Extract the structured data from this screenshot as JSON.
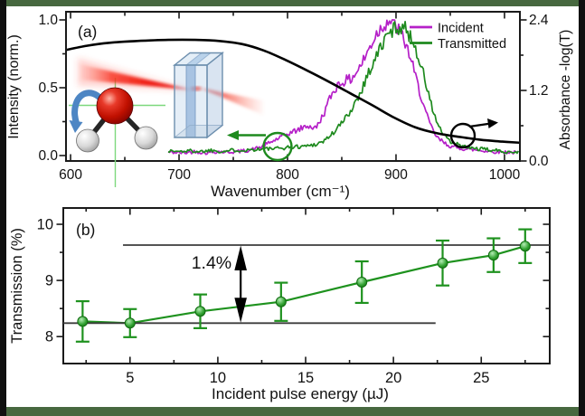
{
  "frame": {
    "border_color": "#101010",
    "accent_strip_color": "#47683f"
  },
  "panel_a": {
    "label": "(a)",
    "x_axis_label": "Wavenumber (cm⁻¹)",
    "y_left_label": "Intensity (norm.)",
    "y_right_label": "Absorbance -log(T)",
    "legend": [
      {
        "label": "Incident",
        "color": "#b520c8"
      },
      {
        "label": "Transmitted",
        "color": "#1e8a1e"
      }
    ]
  },
  "panel_b": {
    "label": "(b)",
    "x_axis_label": "Incident pulse energy (µJ)",
    "y_axis_label": "Transmission (%)",
    "annotation_label": "1.4%"
  },
  "chart_data": [
    {
      "type": "line",
      "title": "Spectra of incident and transmitted pulses with absorbance",
      "xlabel": "Wavenumber (cm⁻¹)",
      "ylabel_left": "Intensity (norm.)",
      "ylabel_right": "Absorbance -log(T)",
      "xlim": [
        595.8,
        1014.2
      ],
      "ylim_left": [
        -0.04,
        1.06
      ],
      "ylim_right": [
        0.0,
        2.54
      ],
      "x_major_ticks": [
        600,
        700,
        800,
        900,
        1000
      ],
      "x_minor_ticks": [
        650,
        750,
        850,
        950
      ],
      "y_left_major_ticks": [
        0.0,
        0.5,
        1.0
      ],
      "y_left_minor_ticks": [
        0.25,
        0.75
      ],
      "y_right_major_ticks": [
        0.0,
        1.2,
        2.4
      ],
      "y_right_minor_ticks": [
        0.6,
        1.8
      ],
      "legend_position": "top-right",
      "series": [
        {
          "name": "Incident",
          "color": "#b520c8",
          "axis": "left",
          "noisy": true,
          "points": [
            [
              690,
              0.025
            ],
            [
              705,
              0.02
            ],
            [
              715,
              0.03
            ],
            [
              725,
              0.02
            ],
            [
              735,
              0.03
            ],
            [
              745,
              0.025
            ],
            [
              755,
              0.03
            ],
            [
              765,
              0.04
            ],
            [
              775,
              0.06
            ],
            [
              785,
              0.1
            ],
            [
              795,
              0.14
            ],
            [
              803,
              0.17
            ],
            [
              810,
              0.19
            ],
            [
              818,
              0.22
            ],
            [
              826,
              0.2
            ],
            [
              833,
              0.3
            ],
            [
              840,
              0.44
            ],
            [
              846,
              0.52
            ],
            [
              852,
              0.55
            ],
            [
              858,
              0.56
            ],
            [
              864,
              0.62
            ],
            [
              870,
              0.7
            ],
            [
              876,
              0.8
            ],
            [
              882,
              0.9
            ],
            [
              888,
              0.96
            ],
            [
              893,
              1.0
            ],
            [
              898,
              0.97
            ],
            [
              903,
              0.92
            ],
            [
              908,
              0.84
            ],
            [
              913,
              0.73
            ],
            [
              918,
              0.58
            ],
            [
              923,
              0.44
            ],
            [
              928,
              0.3
            ],
            [
              933,
              0.2
            ],
            [
              938,
              0.13
            ],
            [
              945,
              0.09
            ],
            [
              953,
              0.06
            ],
            [
              963,
              0.05
            ],
            [
              975,
              0.04
            ],
            [
              988,
              0.03
            ],
            [
              1002,
              0.025
            ],
            [
              1014,
              0.02
            ]
          ]
        },
        {
          "name": "Transmitted",
          "color": "#1e8a1e",
          "axis": "left",
          "noisy": true,
          "points": [
            [
              690,
              0.035
            ],
            [
              700,
              0.03
            ],
            [
              710,
              0.035
            ],
            [
              720,
              0.03
            ],
            [
              730,
              0.04
            ],
            [
              740,
              0.03
            ],
            [
              750,
              0.04
            ],
            [
              760,
              0.04
            ],
            [
              770,
              0.045
            ],
            [
              780,
              0.05
            ],
            [
              790,
              0.05
            ],
            [
              800,
              0.06
            ],
            [
              808,
              0.065
            ],
            [
              816,
              0.07
            ],
            [
              824,
              0.08
            ],
            [
              832,
              0.1
            ],
            [
              840,
              0.15
            ],
            [
              847,
              0.21
            ],
            [
              854,
              0.28
            ],
            [
              861,
              0.37
            ],
            [
              868,
              0.48
            ],
            [
              874,
              0.6
            ],
            [
              880,
              0.7
            ],
            [
              886,
              0.8
            ],
            [
              891,
              0.87
            ],
            [
              896,
              0.92
            ],
            [
              901,
              0.95
            ],
            [
              906,
              0.95
            ],
            [
              911,
              0.91
            ],
            [
              915,
              0.85
            ],
            [
              919,
              0.77
            ],
            [
              924,
              0.64
            ],
            [
              929,
              0.48
            ],
            [
              934,
              0.33
            ],
            [
              939,
              0.22
            ],
            [
              944,
              0.15
            ],
            [
              950,
              0.1
            ],
            [
              957,
              0.08
            ],
            [
              965,
              0.06
            ],
            [
              975,
              0.05
            ],
            [
              988,
              0.04
            ],
            [
              1000,
              0.03
            ],
            [
              1014,
              0.025
            ]
          ]
        },
        {
          "name": "Absorbance",
          "color": "#000000",
          "axis": "right",
          "noisy": false,
          "points": [
            [
              596,
              1.89
            ],
            [
              615,
              1.96
            ],
            [
              635,
              2.01
            ],
            [
              660,
              2.04
            ],
            [
              690,
              2.06
            ],
            [
              715,
              2.06
            ],
            [
              738,
              2.04
            ],
            [
              758,
              1.99
            ],
            [
              778,
              1.88
            ],
            [
              798,
              1.72
            ],
            [
              818,
              1.54
            ],
            [
              838,
              1.35
            ],
            [
              858,
              1.15
            ],
            [
              878,
              0.95
            ],
            [
              898,
              0.74
            ],
            [
              918,
              0.57
            ],
            [
              938,
              0.47
            ],
            [
              958,
              0.41
            ],
            [
              978,
              0.36
            ],
            [
              998,
              0.33
            ],
            [
              1014,
              0.31
            ]
          ]
        }
      ]
    },
    {
      "type": "line",
      "title": "Transmission vs incident pulse energy",
      "xlabel": "Incident pulse energy (µJ)",
      "ylabel": "Transmission (%)",
      "xlim": [
        1.2,
        28.9
      ],
      "ylim": [
        7.52,
        10.29
      ],
      "x_major_ticks": [
        5,
        10,
        15,
        20,
        25
      ],
      "x_minor_ticks": [
        2.5,
        7.5,
        12.5,
        17.5,
        22.5,
        27.5
      ],
      "y_major_ticks": [
        8,
        9,
        10
      ],
      "y_minor_ticks": [
        8.5,
        9.5
      ],
      "y_right_ticks": [
        8,
        8.5,
        9,
        9.5,
        10
      ],
      "series": [
        {
          "name": "Transmission",
          "color": "#1e921e",
          "x": [
            2.3,
            5.0,
            9.0,
            13.6,
            18.2,
            22.8,
            25.7,
            27.5
          ],
          "y": [
            8.27,
            8.24,
            8.45,
            8.62,
            8.97,
            9.31,
            9.45,
            9.61
          ],
          "yerr": [
            0.36,
            0.25,
            0.3,
            0.34,
            0.37,
            0.4,
            0.3,
            0.3
          ]
        }
      ],
      "annotations": {
        "lower_line_y": 8.24,
        "lower_line_x": [
          1.2,
          22.4
        ],
        "upper_line_y": 9.63,
        "upper_line_x": [
          4.6,
          28.9
        ],
        "arrow_x": 11.3,
        "label": "1.4%"
      }
    }
  ]
}
